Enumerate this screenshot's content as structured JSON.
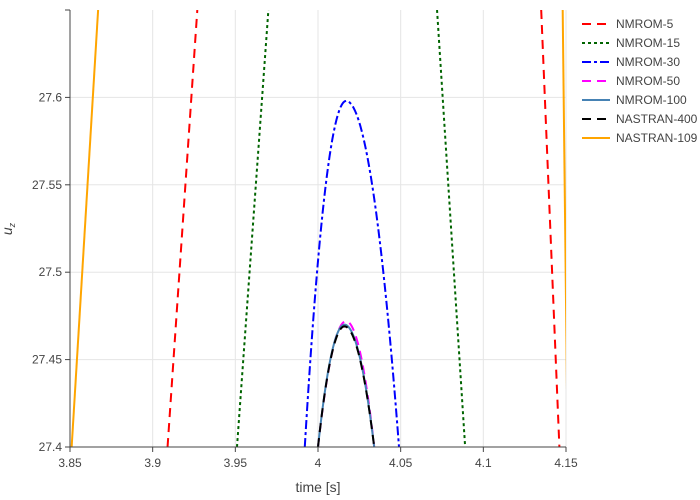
{
  "chart_data": {
    "type": "line",
    "xlabel": "time [s]",
    "ylabel_base": "u",
    "ylabel_sub": "z",
    "xlim": [
      3.85,
      4.15
    ],
    "ylim": [
      27.4,
      27.65
    ],
    "xticks": [
      3.85,
      3.9,
      3.95,
      4.0,
      4.05,
      4.1,
      4.15
    ],
    "xtick_labels": [
      "3.85",
      "3.9",
      "3.95",
      "4",
      "4.05",
      "4.1",
      "4.15"
    ],
    "yticks": [
      27.4,
      27.45,
      27.5,
      27.55,
      27.6
    ],
    "ytick_labels": [
      "27.4",
      "27.45",
      "27.5",
      "27.55",
      "27.6"
    ],
    "grid": true,
    "legend_position": "top-right",
    "series": [
      {
        "name": "NMROM-5",
        "color": "#ff0000",
        "dash": "dash",
        "segments": [
          [
            [
              3.909,
              27.4
            ],
            [
              3.927,
              27.65
            ]
          ],
          [
            [
              4.135,
              27.65
            ],
            [
              4.146,
              27.4
            ]
          ]
        ]
      },
      {
        "name": "NMROM-15",
        "color": "#006400",
        "dash": "dot",
        "segments": [
          [
            [
              3.951,
              27.4
            ],
            [
              3.97,
              27.65
            ]
          ],
          [
            [
              4.072,
              27.65
            ],
            [
              4.089,
              27.4
            ]
          ]
        ]
      },
      {
        "name": "NMROM-30",
        "color": "#0000ff",
        "dash": "dashdot",
        "curve": {
          "peak_x": 4.017,
          "peak_y": 27.598,
          "x_left": 3.992,
          "x_right": 4.049,
          "y_base": 27.4
        }
      },
      {
        "name": "NMROM-50",
        "color": "#ff00ff",
        "dash": "dash",
        "curve": {
          "peak_x": 4.017,
          "peak_y": 27.472,
          "x_left": 4.0,
          "x_right": 4.034,
          "y_base": 27.4
        }
      },
      {
        "name": "NMROM-100",
        "color": "#4682b4",
        "dash": "solid",
        "curve": {
          "peak_x": 4.016,
          "peak_y": 27.47,
          "x_left": 4.0,
          "x_right": 4.034,
          "y_base": 27.4
        }
      },
      {
        "name": "NASTRAN-400",
        "color": "#000000",
        "dash": "dash",
        "curve": {
          "peak_x": 4.016,
          "peak_y": 27.469,
          "x_left": 4.0,
          "x_right": 4.034,
          "y_base": 27.4
        }
      },
      {
        "name": "NASTRAN-109",
        "color": "#ffa500",
        "dash": "solid",
        "segments": [
          [
            [
              3.851,
              27.4
            ],
            [
              3.867,
              27.65
            ]
          ],
          [
            [
              4.148,
              27.65
            ],
            [
              4.151,
              27.4
            ]
          ]
        ]
      }
    ]
  }
}
